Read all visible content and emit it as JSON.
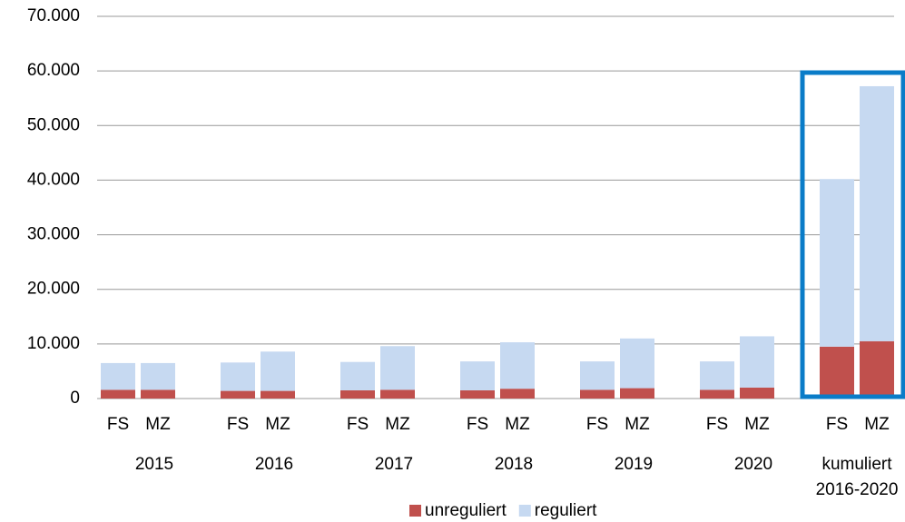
{
  "chart_data": {
    "type": "stacked_bar",
    "groups": [
      [
        "2015"
      ],
      [
        "2016"
      ],
      [
        "2017"
      ],
      [
        "2018"
      ],
      [
        "2019"
      ],
      [
        "2020"
      ],
      [
        "kumuliert",
        "2016-2020"
      ]
    ],
    "categories": [
      "FS",
      "MZ",
      "FS",
      "MZ",
      "FS",
      "MZ",
      "FS",
      "MZ",
      "FS",
      "MZ",
      "FS",
      "MZ",
      "FS",
      "MZ"
    ],
    "series": [
      {
        "name": "unreguliert",
        "color": "#c0504d",
        "values": [
          1600,
          1600,
          1400,
          1400,
          1500,
          1600,
          1500,
          1800,
          1600,
          1900,
          1600,
          2000,
          9500,
          10500
        ]
      },
      {
        "name": "reguliert",
        "color": "#c6d9f1",
        "values": [
          4900,
          4900,
          5200,
          7200,
          5200,
          8000,
          5300,
          8500,
          5200,
          9100,
          5200,
          9400,
          30700,
          46700
        ]
      }
    ],
    "ylim": [
      0,
      70000
    ],
    "yticks": [
      0,
      {
        "value": 10000,
        "label": "10.000"
      },
      {
        "value": 20000,
        "label": "20.000"
      },
      {
        "value": 30000,
        "label": "30.000"
      },
      {
        "value": 40000,
        "label": "40.000"
      },
      {
        "value": 50000,
        "label": "50.000"
      },
      {
        "value": 60000,
        "label": "60.000"
      },
      {
        "value": 70000,
        "label": "70.000"
      }
    ],
    "grid": true,
    "legend": "bottom"
  }
}
